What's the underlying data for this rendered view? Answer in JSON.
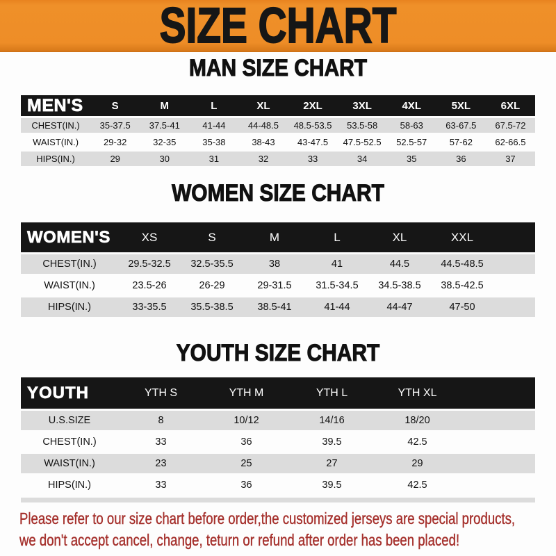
{
  "banner": {
    "title": "SIZE CHART"
  },
  "sections": [
    {
      "heading": "MAN SIZE CHART",
      "table": {
        "label": "MEN'S",
        "columns": [
          "S",
          "M",
          "L",
          "XL",
          "2XL",
          "3XL",
          "4XL",
          "5XL",
          "6XL"
        ],
        "rows": [
          {
            "label": "CHEST(IN.)",
            "values": [
              "35-37.5",
              "37.5-41",
              "41-44",
              "44-48.5",
              "48.5-53.5",
              "53.5-58",
              "58-63",
              "63-67.5",
              "67.5-72"
            ]
          },
          {
            "label": "WAIST(IN.)",
            "values": [
              "29-32",
              "32-35",
              "35-38",
              "38-43",
              "43-47.5",
              "47.5-52.5",
              "52.5-57",
              "57-62",
              "62-66.5"
            ]
          },
          {
            "label": "HIPS(IN.)",
            "values": [
              "29",
              "30",
              "31",
              "32",
              "33",
              "34",
              "35",
              "36",
              "37"
            ]
          }
        ]
      }
    },
    {
      "heading": "WOMEN SIZE CHART",
      "table": {
        "label": "WOMEN'S",
        "columns": [
          "XS",
          "S",
          "M",
          "L",
          "XL",
          "XXL"
        ],
        "rows": [
          {
            "label": "CHEST(IN.)",
            "values": [
              "29.5-32.5",
              "32.5-35.5",
              "38",
              "41",
              "44.5",
              "44.5-48.5"
            ]
          },
          {
            "label": "WAIST(IN.)",
            "values": [
              "23.5-26",
              "26-29",
              "29-31.5",
              "31.5-34.5",
              "34.5-38.5",
              "38.5-42.5"
            ]
          },
          {
            "label": "HIPS(IN.)",
            "values": [
              "33-35.5",
              "35.5-38.5",
              "38.5-41",
              "41-44",
              "44-47",
              "47-50"
            ]
          }
        ]
      }
    },
    {
      "heading": "YOUTH SIZE CHART",
      "table": {
        "label": "YOUTH",
        "columns": [
          "YTH S",
          "YTH M",
          "YTH L",
          "YTH XL"
        ],
        "rows": [
          {
            "label": "U.S.SIZE",
            "values": [
              "8",
              "10/12",
              "14/16",
              "18/20"
            ]
          },
          {
            "label": "CHEST(IN.)",
            "values": [
              "33",
              "36",
              "39.5",
              "42.5"
            ]
          },
          {
            "label": "WAIST(IN.)",
            "values": [
              "23",
              "25",
              "27",
              "29"
            ]
          },
          {
            "label": "HIPS(IN.)",
            "values": [
              "33",
              "36",
              "39.5",
              "42.5"
            ]
          }
        ]
      }
    }
  ],
  "footer": {
    "line1": "Please refer to our size chart before order,the customized jerseys are special products,",
    "line2": "we don't accept cancel, change, teturn or refund after order has been placed!"
  },
  "colors": {
    "banner_bg": "#EE8D27",
    "header_bar": "#161616",
    "row_stripe": "#DCDCDC",
    "footer_text": "#A5302C"
  }
}
